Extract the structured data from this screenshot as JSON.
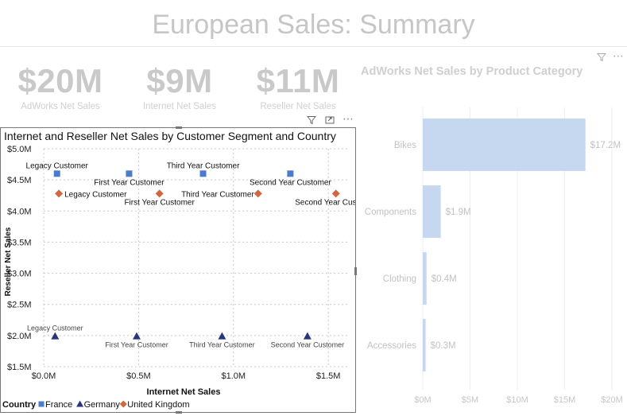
{
  "page": {
    "title": "European Sales: Summary"
  },
  "kpis": [
    {
      "value": "$20M",
      "label": "AdWorks Net Sales"
    },
    {
      "value": "$9M",
      "label": "Internet Net Sales"
    },
    {
      "value": "$11M",
      "label": "Reseller Net Sales"
    }
  ],
  "icons": {
    "filter": "filter-icon",
    "focus": "focus-mode-icon",
    "more": "more-options-icon"
  },
  "scatter": {
    "legend_title": "Country",
    "chart_data": {
      "type": "scatter",
      "title": "Internet and Reseller Net Sales by Customer Segment and Country",
      "xlabel": "Internet Net Sales",
      "ylabel": "Reseller Net Sales",
      "xlim": [
        0,
        1.6
      ],
      "ylim": [
        1.5,
        5.0
      ],
      "x_ticks": [
        0,
        0.5,
        1.0,
        1.5
      ],
      "x_tick_labels": [
        "$0.0M",
        "$0.5M",
        "$1.0M",
        "$1.5M"
      ],
      "y_ticks": [
        1.5,
        2.0,
        2.5,
        3.0,
        3.5,
        4.0,
        4.5,
        5.0
      ],
      "y_tick_labels": [
        "$1.5M",
        "$2.0M",
        "$2.5M",
        "$3.0M",
        "$3.5M",
        "$4.0M",
        "$4.5M",
        "$5.0M"
      ],
      "grid": true,
      "legend_position": "bottom-left",
      "series": [
        {
          "name": "France",
          "color": "#4a7cc9",
          "marker": "square",
          "points": [
            {
              "x": 0.07,
              "y": 4.6,
              "label": "Legacy Customer",
              "label_pos": "above"
            },
            {
              "x": 0.45,
              "y": 4.6,
              "label": "First Year Customer",
              "label_pos": "below"
            },
            {
              "x": 0.84,
              "y": 4.6,
              "label": "Third Year Customer",
              "label_pos": "above"
            },
            {
              "x": 1.3,
              "y": 4.6,
              "label": "Second Year Customer",
              "label_pos": "below"
            }
          ]
        },
        {
          "name": "Germany",
          "color": "#27357a",
          "marker": "triangle",
          "points": [
            {
              "x": 0.06,
              "y": 1.99,
              "label": "Legacy Customer",
              "label_pos": "above"
            },
            {
              "x": 0.49,
              "y": 1.99,
              "label": "First Year Customer",
              "label_pos": "below"
            },
            {
              "x": 0.94,
              "y": 1.99,
              "label": "Third Year Customer",
              "label_pos": "below"
            },
            {
              "x": 1.39,
              "y": 1.99,
              "label": "Second Year Customer",
              "label_pos": "below"
            }
          ]
        },
        {
          "name": "United Kingdom",
          "color": "#d2673f",
          "marker": "diamond",
          "points": [
            {
              "x": 0.08,
              "y": 4.28,
              "label": "Legacy Customer",
              "label_pos": "right"
            },
            {
              "x": 0.61,
              "y": 4.28,
              "label": "First Year Customer",
              "label_pos": "below"
            },
            {
              "x": 1.13,
              "y": 4.28,
              "label": "Third Year Customer",
              "label_pos": "left"
            },
            {
              "x": 1.54,
              "y": 4.28,
              "label": "Second Year Customer",
              "label_pos": "below"
            }
          ]
        }
      ]
    }
  },
  "bars": {
    "chart_data": {
      "type": "bar",
      "orientation": "horizontal",
      "title": "AdWorks Net Sales by Product Category",
      "categories": [
        "Bikes",
        "Components",
        "Clothing",
        "Accessories"
      ],
      "values": [
        17.2,
        1.9,
        0.4,
        0.3
      ],
      "value_labels": [
        "$17.2M",
        "$1.9M",
        "$0.4M",
        "$0.3M"
      ],
      "xlim": [
        0,
        20
      ],
      "x_ticks": [
        0,
        5,
        10,
        15,
        20
      ],
      "x_tick_labels": [
        "$0M",
        "$5M",
        "$10M",
        "$15M",
        "$20M"
      ],
      "color": "#c6d8f0",
      "grid": true
    }
  }
}
